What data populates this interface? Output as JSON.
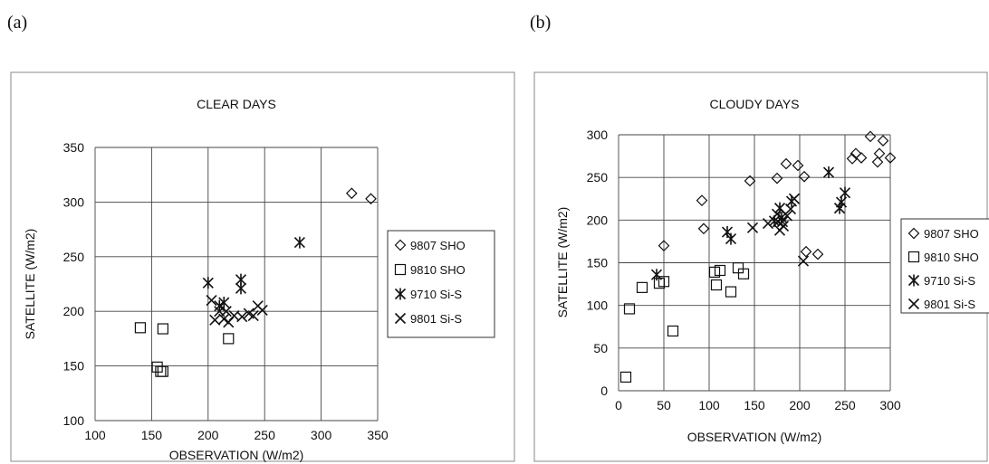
{
  "panels": [
    {
      "label": "(a)"
    },
    {
      "label": "(b)"
    }
  ],
  "chart_data": [
    {
      "type": "scatter",
      "title": "CLEAR DAYS",
      "xlabel": "OBSERVATION (W/m2)",
      "ylabel": "SATELLITE (W/m2)",
      "xlim": [
        100,
        350
      ],
      "ylim": [
        100,
        350
      ],
      "x_ticks": [
        "100",
        "150",
        "200",
        "250",
        "300",
        "350"
      ],
      "y_ticks": [
        "100",
        "150",
        "200",
        "250",
        "300",
        "350"
      ],
      "grid": true,
      "legend_position": "right",
      "series": [
        {
          "name": "9807 SHO",
          "marker": "diamond",
          "points": [
            [
              327,
              308
            ],
            [
              344,
              303
            ]
          ]
        },
        {
          "name": "9810 SHO",
          "marker": "square",
          "points": [
            [
              140,
              185
            ],
            [
              160,
              184
            ],
            [
              155,
              149
            ],
            [
              158,
              145
            ],
            [
              160,
              145
            ],
            [
              218,
              175
            ]
          ]
        },
        {
          "name": "9710 Si-S",
          "marker": "asterisk",
          "points": [
            [
              200,
              226
            ],
            [
              229,
              229
            ],
            [
              229,
              221
            ],
            [
              281,
              263
            ],
            [
              210,
              205
            ],
            [
              214,
              208
            ]
          ]
        },
        {
          "name": "9801 Si-S",
          "marker": "x",
          "points": [
            [
              203,
              210
            ],
            [
              210,
              200
            ],
            [
              206,
              192
            ],
            [
              214,
              193
            ],
            [
              218,
              190
            ],
            [
              223,
              196
            ],
            [
              230,
              195
            ],
            [
              236,
              198
            ],
            [
              240,
              196
            ],
            [
              244,
              205
            ],
            [
              248,
              201
            ],
            [
              216,
              200
            ]
          ]
        }
      ]
    },
    {
      "type": "scatter",
      "title": "CLOUDY DAYS",
      "xlabel": "OBSERVATION (W/m2)",
      "ylabel": "SATELLITE (W/m2)",
      "xlim": [
        0,
        300
      ],
      "ylim": [
        0,
        300
      ],
      "x_ticks": [
        "0",
        "50",
        "100",
        "150",
        "200",
        "250",
        "300"
      ],
      "y_ticks": [
        "0",
        "50",
        "100",
        "150",
        "200",
        "250",
        "300"
      ],
      "grid": true,
      "legend_position": "right",
      "series": [
        {
          "name": "9807 SHO",
          "marker": "diamond",
          "points": [
            [
              50,
              170
            ],
            [
              92,
              223
            ],
            [
              94,
              190
            ],
            [
              145,
              246
            ],
            [
              175,
              249
            ],
            [
              185,
              266
            ],
            [
              198,
              264
            ],
            [
              205,
              251
            ],
            [
              207,
              163
            ],
            [
              220,
              160
            ],
            [
              258,
              272
            ],
            [
              262,
              278
            ],
            [
              268,
              273
            ],
            [
              278,
              298
            ],
            [
              286,
              268
            ],
            [
              288,
              278
            ],
            [
              292,
              293
            ],
            [
              300,
              273
            ]
          ]
        },
        {
          "name": "9810 SHO",
          "marker": "square",
          "points": [
            [
              8,
              16
            ],
            [
              12,
              96
            ],
            [
              26,
              121
            ],
            [
              45,
              126
            ],
            [
              50,
              128
            ],
            [
              60,
              70
            ],
            [
              106,
              139
            ],
            [
              108,
              124
            ],
            [
              112,
              141
            ],
            [
              124,
              116
            ],
            [
              132,
              144
            ],
            [
              138,
              137
            ]
          ]
        },
        {
          "name": "9710 Si-S",
          "marker": "asterisk",
          "points": [
            [
              42,
              136
            ],
            [
              120,
              186
            ],
            [
              124,
              178
            ],
            [
              178,
              214
            ],
            [
              180,
              203
            ],
            [
              232,
              256
            ],
            [
              244,
              214
            ],
            [
              246,
              221
            ],
            [
              250,
              232
            ],
            [
              191,
              222
            ],
            [
              172,
              199
            ]
          ]
        },
        {
          "name": "9801 Si-S",
          "marker": "x",
          "points": [
            [
              148,
              191
            ],
            [
              165,
              196
            ],
            [
              176,
              198
            ],
            [
              178,
              188
            ],
            [
              182,
              193
            ],
            [
              186,
              205
            ],
            [
              190,
              213
            ],
            [
              194,
              225
            ],
            [
              204,
              152
            ],
            [
              181,
              198
            ],
            [
              175,
              207
            ]
          ]
        }
      ]
    }
  ]
}
